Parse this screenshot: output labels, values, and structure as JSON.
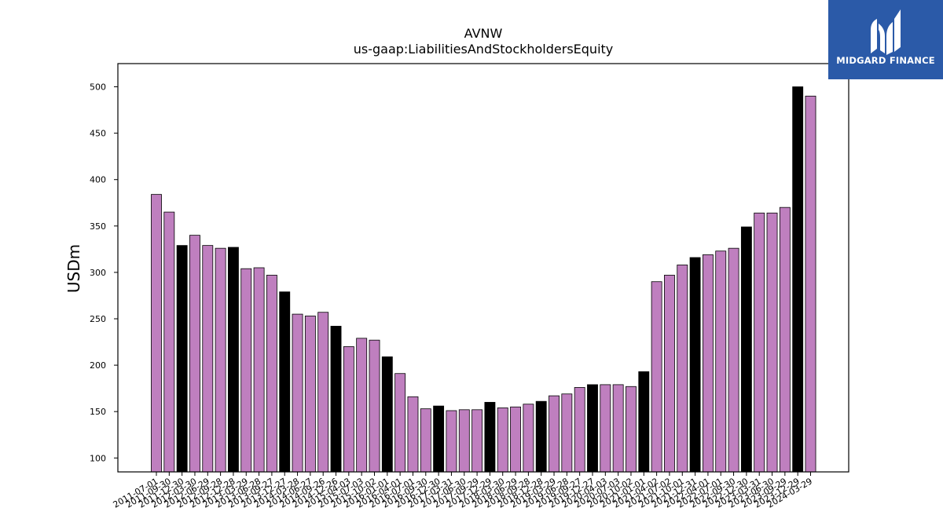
{
  "chart_data": {
    "type": "bar",
    "title": "AVNW",
    "subtitle": "us-gaap:LiabilitiesAndStockholdersEquity",
    "xlabel": "",
    "ylabel": "USDm",
    "ylim": [
      85,
      525
    ],
    "yticks": [
      100,
      150,
      200,
      250,
      300,
      350,
      400,
      450,
      500
    ],
    "grid": false,
    "colors": {
      "default": "#bf7fbf",
      "highlight": "#000000"
    },
    "tick_labels": [
      "2011-07-01",
      "2011-09-30",
      "2011-12-30",
      "2012-03-30",
      "2012-06-29",
      "2012-09-28",
      "2012-12-28",
      "2013-03-29",
      "2013-06-28",
      "2013-09-27",
      "2013-12-27",
      "2014-03-28",
      "2014-06-27",
      "2014-09-26",
      "2014-12-26",
      "2015-04-03",
      "2015-07-03",
      "2015-10-02",
      "2016-01-01",
      "2016-04-01",
      "2016-07-01",
      "2016-09-30",
      "2016-12-30",
      "2017-03-31",
      "2017-06-30",
      "2017-09-29",
      "2017-12-29",
      "2018-03-30",
      "2018-06-29",
      "2018-09-28",
      "2018-12-28",
      "2019-03-29",
      "2019-06-28",
      "2019-09-27",
      "2019-12-27",
      "2020-04-03",
      "2020-07-03",
      "2020-10-02",
      "2021-01-01",
      "2021-04-02",
      "2021-07-02",
      "2021-10-01",
      "2021-12-31",
      "2022-04-01",
      "2022-07-01",
      "2022-09-30",
      "2022-12-30",
      "2023-03-31",
      "2023-06-30",
      "2023-09-29",
      "2023-12-29",
      "2024-03-29"
    ],
    "values": [
      384,
      365,
      329,
      340,
      329,
      326,
      327,
      304,
      305,
      297,
      279,
      255,
      253,
      257,
      242,
      220,
      229,
      227,
      209,
      191,
      166,
      153,
      156,
      151,
      152,
      152,
      160,
      154,
      155,
      158,
      161,
      167,
      169,
      176,
      179,
      179,
      179,
      177,
      193,
      290,
      297,
      308,
      316,
      319,
      323,
      326,
      349,
      364,
      364,
      370,
      500,
      490
    ],
    "highlight": [
      false,
      false,
      true,
      false,
      false,
      false,
      true,
      false,
      false,
      false,
      true,
      false,
      false,
      false,
      true,
      false,
      false,
      false,
      true,
      false,
      false,
      false,
      true,
      false,
      false,
      false,
      true,
      false,
      false,
      false,
      true,
      false,
      false,
      false,
      true,
      false,
      false,
      false,
      true,
      false,
      false,
      false,
      true,
      false,
      false,
      false,
      true,
      false,
      false,
      false,
      true,
      false
    ]
  },
  "logo": {
    "text": "MIDGARD FINANCE",
    "icon": "midgard-logo-icon",
    "background": "#2b5aa8"
  }
}
